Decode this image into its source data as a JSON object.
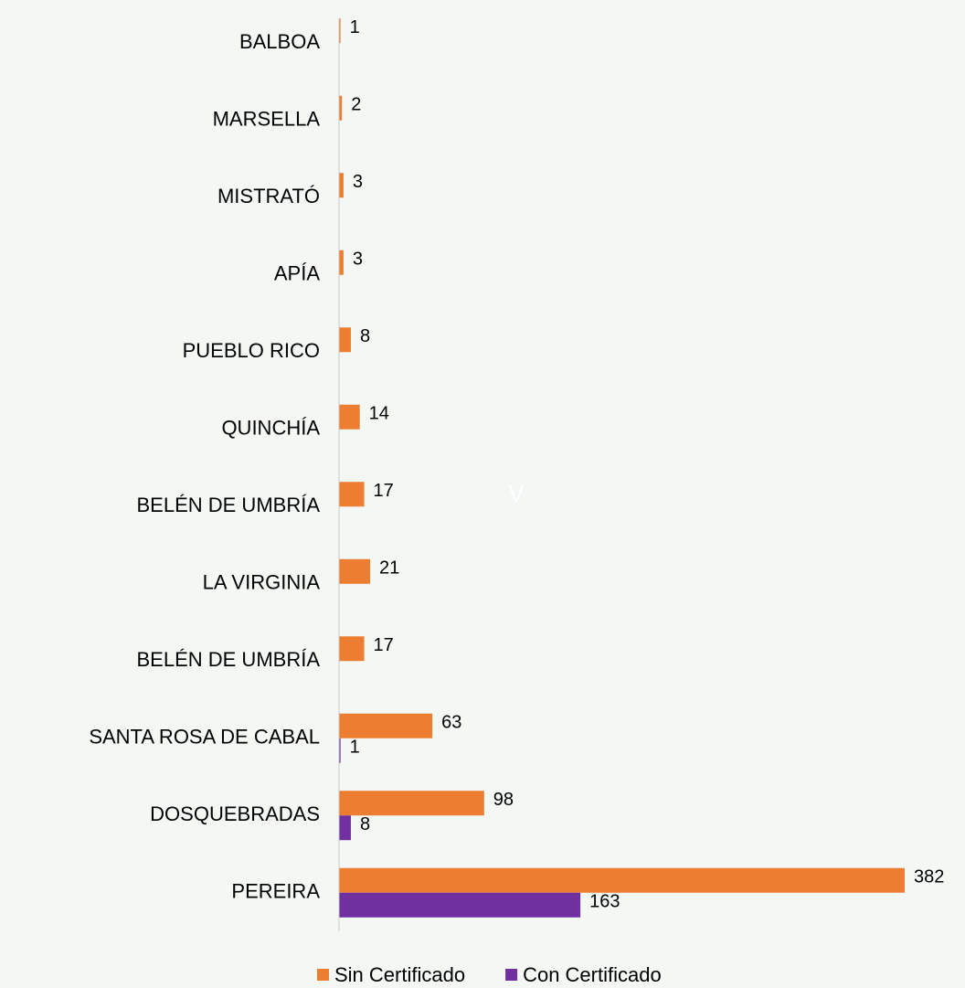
{
  "chart_data": {
    "type": "bar",
    "orientation": "horizontal",
    "categories": [
      "BALBOA",
      "MARSELLA",
      "MISTRATÓ",
      "APÍA",
      "PUEBLO RICO",
      "QUINCHÍA",
      "BELÉN DE UMBRÍA",
      "LA VIRGINIA",
      "BELÉN DE UMBRÍA",
      "SANTA ROSA DE CABAL",
      "DOSQUEBRADAS",
      "PEREIRA"
    ],
    "series": [
      {
        "name": "Sin Certificado",
        "color": "#ed7d31",
        "values": [
          1,
          2,
          3,
          3,
          8,
          14,
          17,
          21,
          17,
          63,
          98,
          382
        ]
      },
      {
        "name": "Con Certificado",
        "color": "#7030a0",
        "values": [
          null,
          null,
          null,
          null,
          null,
          null,
          null,
          null,
          null,
          1,
          8,
          163
        ]
      }
    ],
    "xlim": [
      0,
      382
    ],
    "annotation": "V",
    "legend": "bottom"
  }
}
